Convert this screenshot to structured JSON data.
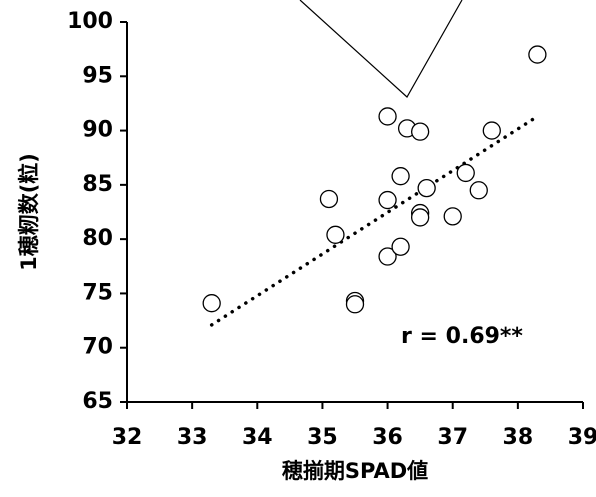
{
  "chart_data": {
    "type": "scatter",
    "x_label": "穂揃期SPAD値",
    "y_label": "1穂籾数(粒)",
    "annotation": "r = 0.69**",
    "series": [
      {
        "color": "#000000",
        "x": [
          33.3,
          35.1,
          35.2,
          35.5,
          35.5,
          36.0,
          36.0,
          36.0,
          36.2,
          36.2,
          36.3,
          36.5,
          36.5,
          36.5,
          36.6,
          37.0,
          37.2,
          37.4,
          37.6,
          38.3
        ],
        "values": [
          74.1,
          83.7,
          80.4,
          74.3,
          74.0,
          91.3,
          83.6,
          78.4,
          85.8,
          79.3,
          90.2,
          89.9,
          82.4,
          82.0,
          84.7,
          82.1,
          86.1,
          84.5,
          90.0,
          97.0
        ]
      }
    ],
    "trendline": {
      "x": [
        33.3,
        38.3
      ],
      "y": [
        72.1,
        91.3
      ]
    },
    "xlim": [
      32,
      39
    ],
    "xticks": [
      32,
      33,
      34,
      35,
      36,
      37,
      38,
      39
    ],
    "ylim": [
      65,
      100
    ],
    "yticks": [
      65,
      70,
      75,
      80,
      85,
      90,
      95,
      100
    ],
    "grid": false
  }
}
